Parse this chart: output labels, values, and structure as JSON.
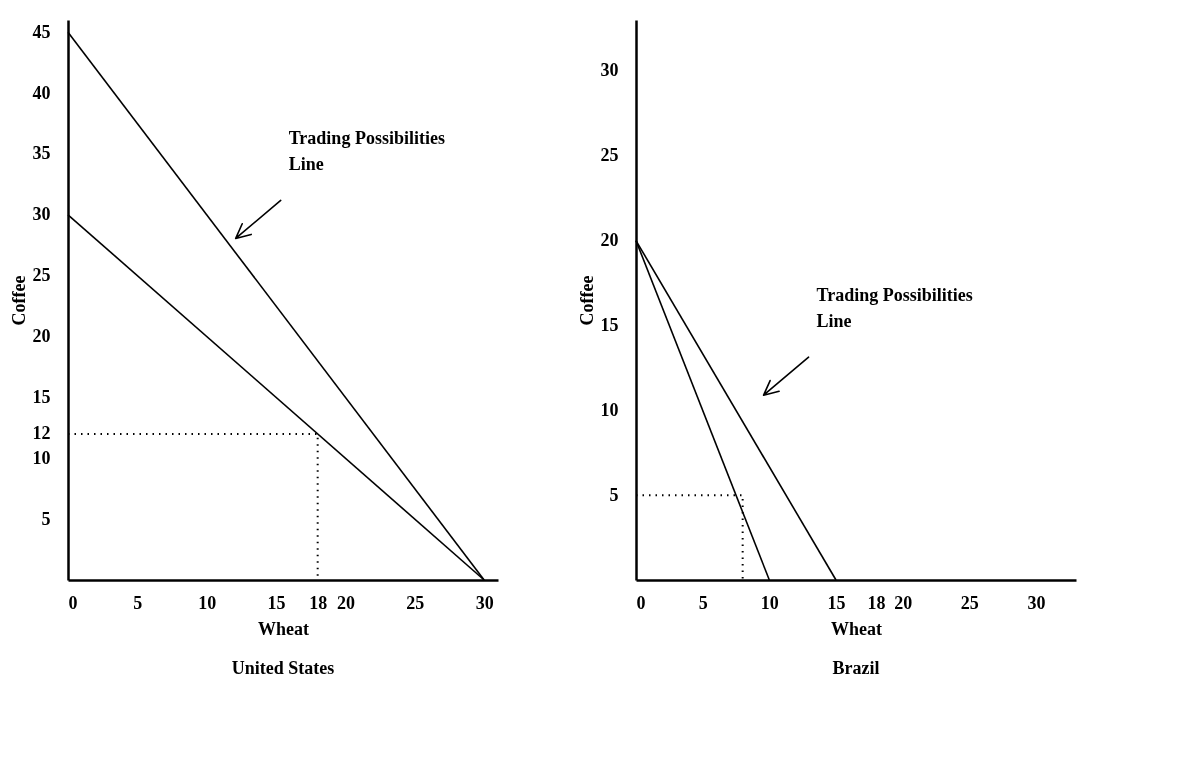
{
  "chart_data": [
    {
      "type": "line",
      "title": "United States",
      "xlabel": "Wheat",
      "ylabel": "Coffee",
      "xlim": [
        0,
        31
      ],
      "ylim": [
        0,
        46
      ],
      "xticks": [
        0,
        5,
        10,
        15,
        18,
        20,
        25,
        30
      ],
      "yticks": [
        5,
        10,
        12,
        15,
        20,
        25,
        30,
        35,
        40,
        45
      ],
      "grid": false,
      "marker": "none",
      "series": [
        {
          "color": "#000000",
          "line_style": "solid",
          "x": [
            0,
            30
          ],
          "values": [
            30,
            0
          ]
        },
        {
          "color": "#000000",
          "line_style": "solid",
          "x": [
            0,
            30
          ],
          "values": [
            45,
            0
          ]
        },
        {
          "color": "#000000",
          "line_style": "dotted",
          "x": [
            0,
            18,
            18
          ],
          "values": [
            12,
            12,
            0
          ]
        }
      ],
      "annotations": [
        "Trading Possibilities Line"
      ]
    },
    {
      "type": "line",
      "title": "Brazil",
      "xlabel": "Wheat",
      "ylabel": "Coffee",
      "xlim": [
        0,
        33
      ],
      "ylim": [
        0,
        33
      ],
      "xticks": [
        0,
        5,
        10,
        15,
        18,
        20,
        25,
        30
      ],
      "yticks": [
        5,
        10,
        15,
        20,
        25,
        30
      ],
      "grid": false,
      "marker": "none",
      "series": [
        {
          "color": "#000000",
          "line_style": "solid",
          "x": [
            0,
            10
          ],
          "values": [
            20,
            0
          ]
        },
        {
          "color": "#000000",
          "line_style": "solid",
          "x": [
            0,
            15
          ],
          "values": [
            20,
            0
          ]
        },
        {
          "color": "#000000",
          "line_style": "dotted",
          "x": [
            0,
            8,
            8
          ],
          "values": [
            5,
            5,
            0
          ]
        }
      ],
      "annotations": [
        "Trading Possibilities Line"
      ]
    }
  ]
}
